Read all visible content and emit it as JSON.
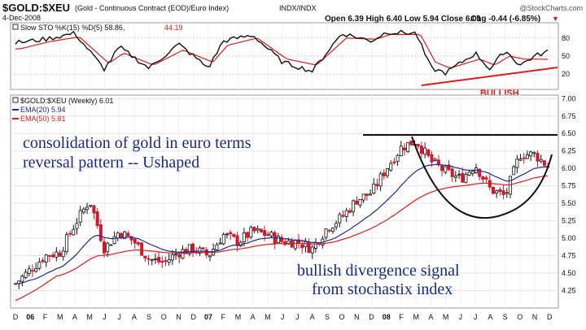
{
  "header": {
    "symbol": "$GOLD:$XEU",
    "description": "(Gold - Continuous Contract (EOD)/Euro Index)",
    "exchange": "INDX/INDX",
    "watermark": "@StockCharts.com",
    "date": "4-Dec-2008",
    "ohlc": "Open 6.39  High 6.40  Low 5.94  Close 6.01",
    "change": "Chg -0.44 (-6.85%)",
    "change_arrow": "▼"
  },
  "stochastic": {
    "legend_name": "Slow STO %K(15) %D(5) 58.86,",
    "legend_value": "44.19",
    "yticks": [
      "80",
      "50",
      "20"
    ],
    "bullish_label": "BULLISH"
  },
  "price_panel": {
    "legend_title": "$GOLD:$XEU (Weekly) 6.01",
    "ema20": "EMA(20) 5.94",
    "ema50": "EMA(50) 5.81",
    "yticks": [
      "7.00",
      "6.75",
      "6.50",
      "6.25",
      "6.00",
      "5.75",
      "5.50",
      "5.25",
      "5.00",
      "4.75",
      "4.50",
      "4.25"
    ]
  },
  "annotations": {
    "line1": "consolidation of gold in euro terms",
    "line2": "reversal pattern -- Ushaped",
    "line3": "bullish divergence signal",
    "line4": "from stochastix index"
  },
  "xaxis": [
    "D",
    "06",
    "F",
    "M",
    "A",
    "M",
    "J",
    "J",
    "A",
    "S",
    "O",
    "N",
    "D",
    "07",
    "F",
    "M",
    "A",
    "M",
    "J",
    "J",
    "A",
    "S",
    "O",
    "N",
    "D",
    "08",
    "F",
    "M",
    "A",
    "M",
    "J",
    "J",
    "A",
    "S",
    "O",
    "N",
    "D"
  ],
  "colors": {
    "up": "#111111",
    "down": "#cc1a2a",
    "ema20": "#1f2a8a",
    "ema50": "#d81e1e",
    "stoch_k": "#111111",
    "stoch_d": "#d81e1e",
    "annotation": "#1c2a7a"
  },
  "chart_data": {
    "type": "candlestick",
    "period": "weekly",
    "y_range": [
      4.0,
      7.05
    ],
    "x_range": [
      "2005-12-01",
      "2008-12-04"
    ],
    "log_scale": false,
    "grid": true,
    "price_anchors": [
      {
        "x": "2005-12",
        "y": 4.35
      },
      {
        "x": "2006-01",
        "y": 4.55
      },
      {
        "x": "2006-02",
        "y": 4.75
      },
      {
        "x": "2006-03",
        "y": 4.8
      },
      {
        "x": "2006-04",
        "y": 5.2
      },
      {
        "x": "2006-05",
        "y": 5.55
      },
      {
        "x": "2006-06",
        "y": 4.85
      },
      {
        "x": "2006-07",
        "y": 5.1
      },
      {
        "x": "2006-08",
        "y": 4.95
      },
      {
        "x": "2006-09",
        "y": 4.7
      },
      {
        "x": "2006-10",
        "y": 4.65
      },
      {
        "x": "2006-11",
        "y": 4.8
      },
      {
        "x": "2006-12",
        "y": 4.85
      },
      {
        "x": "2007-01",
        "y": 4.75
      },
      {
        "x": "2007-02",
        "y": 5.05
      },
      {
        "x": "2007-03",
        "y": 4.95
      },
      {
        "x": "2007-04",
        "y": 5.1
      },
      {
        "x": "2007-05",
        "y": 5.05
      },
      {
        "x": "2007-06",
        "y": 4.95
      },
      {
        "x": "2007-07",
        "y": 4.95
      },
      {
        "x": "2007-08",
        "y": 4.85
      },
      {
        "x": "2007-09",
        "y": 5.15
      },
      {
        "x": "2007-10",
        "y": 5.3
      },
      {
        "x": "2007-11",
        "y": 5.55
      },
      {
        "x": "2007-12",
        "y": 5.65
      },
      {
        "x": "2008-01",
        "y": 6.0
      },
      {
        "x": "2008-02",
        "y": 6.3
      },
      {
        "x": "2008-03",
        "y": 6.4
      },
      {
        "x": "2008-04",
        "y": 6.1
      },
      {
        "x": "2008-05",
        "y": 5.95
      },
      {
        "x": "2008-06",
        "y": 5.85
      },
      {
        "x": "2008-07",
        "y": 6.05
      },
      {
        "x": "2008-08",
        "y": 5.7
      },
      {
        "x": "2008-09",
        "y": 5.6
      },
      {
        "x": "2008-10",
        "y": 6.2
      },
      {
        "x": "2008-11",
        "y": 6.2
      },
      {
        "x": "2008-12",
        "y": 6.01
      }
    ],
    "resistance_level": 6.48,
    "stochastic_anchors": [
      {
        "x": "2005-12",
        "k": 72,
        "d": 62
      },
      {
        "x": "2006-02",
        "k": 78,
        "d": 74
      },
      {
        "x": "2006-04",
        "k": 88,
        "d": 82
      },
      {
        "x": "2006-06",
        "k": 28,
        "d": 38
      },
      {
        "x": "2006-07",
        "k": 65,
        "d": 55
      },
      {
        "x": "2006-09",
        "k": 30,
        "d": 35
      },
      {
        "x": "2006-11",
        "k": 70,
        "d": 60
      },
      {
        "x": "2007-01",
        "k": 30,
        "d": 40
      },
      {
        "x": "2007-02",
        "k": 75,
        "d": 68
      },
      {
        "x": "2007-04",
        "k": 85,
        "d": 80
      },
      {
        "x": "2007-06",
        "k": 40,
        "d": 45
      },
      {
        "x": "2007-08",
        "k": 25,
        "d": 35
      },
      {
        "x": "2007-10",
        "k": 88,
        "d": 80
      },
      {
        "x": "2007-12",
        "k": 75,
        "d": 78
      },
      {
        "x": "2008-01",
        "k": 90,
        "d": 86
      },
      {
        "x": "2008-03",
        "k": 88,
        "d": 86
      },
      {
        "x": "2008-04",
        "k": 30,
        "d": 40
      },
      {
        "x": "2008-05",
        "k": 22,
        "d": 30
      },
      {
        "x": "2008-07",
        "k": 55,
        "d": 45
      },
      {
        "x": "2008-08",
        "k": 28,
        "d": 35
      },
      {
        "x": "2008-09",
        "k": 60,
        "d": 50
      },
      {
        "x": "2008-10",
        "k": 35,
        "d": 45
      },
      {
        "x": "2008-11",
        "k": 50,
        "d": 45
      },
      {
        "x": "2008-12",
        "k": 58.86,
        "d": 44.19
      }
    ],
    "series": [
      {
        "name": "$GOLD:$XEU (Weekly) 6.01"
      },
      {
        "name": "EMA(20) 5.94"
      },
      {
        "name": "EMA(50) 5.81"
      }
    ]
  }
}
